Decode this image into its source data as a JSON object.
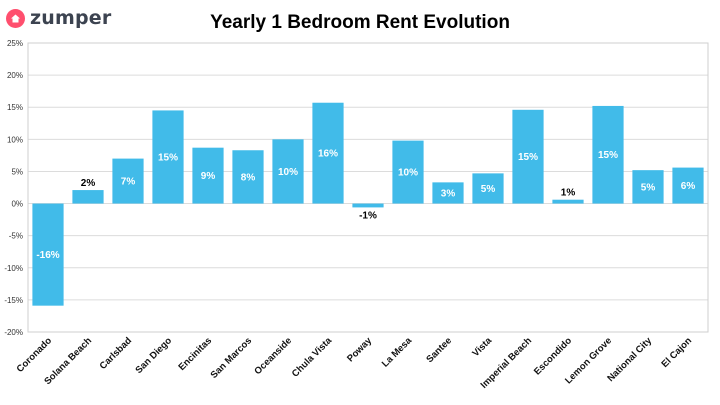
{
  "brand": {
    "name": "zumper",
    "icon": "house-icon",
    "color": "#ff4f6e"
  },
  "chart_data": {
    "type": "bar",
    "title": "Yearly 1 Bedroom Rent Evolution",
    "xlabel": "",
    "ylabel": "",
    "ylim": [
      -0.2,
      0.25
    ],
    "yticks": [
      -0.2,
      -0.15,
      -0.1,
      -0.05,
      0,
      0.05,
      0.1,
      0.15,
      0.2,
      0.25
    ],
    "ytick_labels": [
      "-20%",
      "-15%",
      "-10%",
      "-5%",
      "0%",
      "5%",
      "10%",
      "15%",
      "20%",
      "25%"
    ],
    "grid": true,
    "bar_color": "#41bbe9",
    "categories": [
      "Coronado",
      "Solana Beach",
      "Carlsbad",
      "San Diego",
      "Encinitas",
      "San Marcos",
      "Oceanside",
      "Chula Vista",
      "Poway",
      "La Mesa",
      "Santee",
      "Vista",
      "Imperial Beach",
      "Escondido",
      "Lemon Grove",
      "National City",
      "El Cajon"
    ],
    "values": [
      -0.159,
      0.021,
      0.07,
      0.145,
      0.087,
      0.083,
      0.1,
      0.157,
      -0.006,
      0.098,
      0.033,
      0.047,
      0.146,
      0.006,
      0.152,
      0.052,
      0.056
    ],
    "data_labels": [
      "-16%",
      "2%",
      "7%",
      "15%",
      "9%",
      "8%",
      "10%",
      "16%",
      "-1%",
      "10%",
      "3%",
      "5%",
      "15%",
      "1%",
      "15%",
      "5%",
      "6%"
    ]
  }
}
